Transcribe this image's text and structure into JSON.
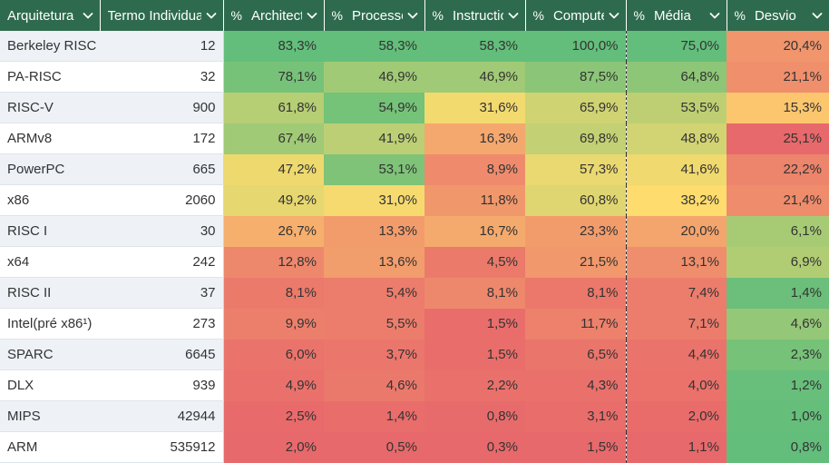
{
  "headers": [
    {
      "label": "Arquitetura",
      "pct": ""
    },
    {
      "label": "Termo Individual",
      "pct": ""
    },
    {
      "label": "Architecture",
      "pct": "%"
    },
    {
      "label": "Processor",
      "pct": "%"
    },
    {
      "label": "Instruction",
      "pct": "%"
    },
    {
      "label": "Computer",
      "pct": "%"
    },
    {
      "label": "Média",
      "pct": "%"
    },
    {
      "label": "Desvio",
      "pct": "%"
    }
  ],
  "rows": [
    {
      "name": "Berkeley RISC",
      "term": "12",
      "v": [
        "83,3%",
        "58,3%",
        "58,3%",
        "100,0%",
        "75,0%",
        "20,4%"
      ]
    },
    {
      "name": "PA-RISC",
      "term": "32",
      "v": [
        "78,1%",
        "46,9%",
        "46,9%",
        "87,5%",
        "64,8%",
        "21,1%"
      ]
    },
    {
      "name": "RISC-V",
      "term": "900",
      "v": [
        "61,8%",
        "54,9%",
        "31,6%",
        "65,9%",
        "53,5%",
        "15,3%"
      ]
    },
    {
      "name": "ARMv8",
      "term": "172",
      "v": [
        "67,4%",
        "41,9%",
        "16,3%",
        "69,8%",
        "48,8%",
        "25,1%"
      ]
    },
    {
      "name": "PowerPC",
      "term": "665",
      "v": [
        "47,2%",
        "53,1%",
        "8,9%",
        "57,3%",
        "41,6%",
        "22,2%"
      ]
    },
    {
      "name": "x86",
      "term": "2060",
      "v": [
        "49,2%",
        "31,0%",
        "11,8%",
        "60,8%",
        "38,2%",
        "21,4%"
      ]
    },
    {
      "name": "RISC I",
      "term": "30",
      "v": [
        "26,7%",
        "13,3%",
        "16,7%",
        "23,3%",
        "20,0%",
        "6,1%"
      ]
    },
    {
      "name": "x64",
      "term": "242",
      "v": [
        "12,8%",
        "13,6%",
        "4,5%",
        "21,5%",
        "13,1%",
        "6,9%"
      ]
    },
    {
      "name": "RISC II",
      "term": "37",
      "v": [
        "8,1%",
        "5,4%",
        "8,1%",
        "8,1%",
        "7,4%",
        "1,4%"
      ]
    },
    {
      "name": "Intel(pré x86¹)",
      "term": "273",
      "v": [
        "9,9%",
        "5,5%",
        "1,5%",
        "11,7%",
        "7,1%",
        "4,6%"
      ]
    },
    {
      "name": "SPARC",
      "term": "6645",
      "v": [
        "6,0%",
        "3,7%",
        "1,5%",
        "6,5%",
        "4,4%",
        "2,3%"
      ]
    },
    {
      "name": "DLX",
      "term": "939",
      "v": [
        "4,9%",
        "4,6%",
        "2,2%",
        "4,3%",
        "4,0%",
        "1,2%"
      ]
    },
    {
      "name": "MIPS",
      "term": "42944",
      "v": [
        "2,5%",
        "1,4%",
        "0,8%",
        "3,1%",
        "2,0%",
        "1,0%"
      ]
    },
    {
      "name": "ARM",
      "term": "535912",
      "v": [
        "2,0%",
        "0,5%",
        "0,3%",
        "1,5%",
        "1,1%",
        "0,8%"
      ]
    }
  ],
  "colors": {
    "header_bg": "#2e6b4e",
    "header_text": "#ffffff",
    "high": "#63be7b",
    "mid": "#ffdc6e",
    "low": "#e8696b"
  }
}
